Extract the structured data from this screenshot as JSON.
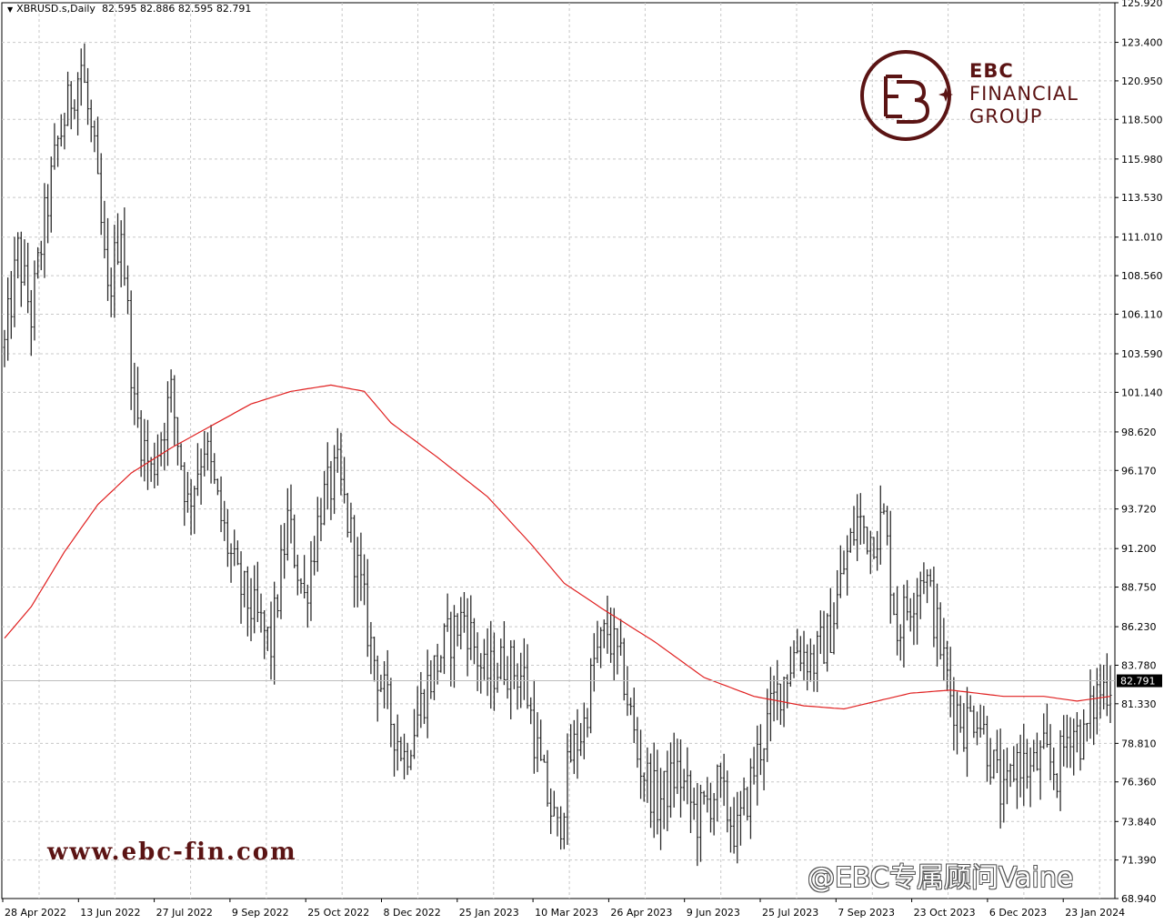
{
  "header": {
    "symbol": "XBRUSD.s,Daily",
    "ohlc": "82.595 82.886 82.595 82.791"
  },
  "watermark": {
    "logo_line1": "EBC",
    "logo_line2": "FINANCIAL",
    "logo_line3": "GROUP",
    "website": "www.ebc-fin.com",
    "social": "@EBC专属顾问Vaine"
  },
  "colors": {
    "bars": "#2b2b2b",
    "moving_average": "#e02020",
    "grid": "#c8c8c8",
    "brand": "#5b1414"
  },
  "chart_data": {
    "type": "ohlc",
    "symbol": "XBRUSD.s",
    "timeframe": "Daily",
    "ylim": [
      68.94,
      125.92
    ],
    "y_ticks": [
      "125.920",
      "123.400",
      "120.950",
      "118.500",
      "115.980",
      "113.530",
      "111.010",
      "108.560",
      "106.110",
      "103.590",
      "101.140",
      "98.620",
      "96.170",
      "93.720",
      "91.200",
      "88.750",
      "86.230",
      "83.780",
      "81.330",
      "78.810",
      "76.360",
      "73.840",
      "71.390",
      "68.940"
    ],
    "x_ticks": [
      "28 Apr 2022",
      "13 Jun 2022",
      "27 Jul 2022",
      "9 Sep 2022",
      "25 Oct 2022",
      "8 Dec 2022",
      "25 Jan 2023",
      "10 Mar 2023",
      "26 Apr 2023",
      "9 Jun 2023",
      "25 Jul 2023",
      "7 Sep 2023",
      "23 Oct 2023",
      "6 Dec 2023",
      "23 Jan 2024"
    ],
    "current_price": "82.791",
    "grid": true,
    "price_path": [
      {
        "t": 0,
        "v": 104
      },
      {
        "t": 4,
        "v": 110
      },
      {
        "t": 8,
        "v": 106
      },
      {
        "t": 12,
        "v": 112
      },
      {
        "t": 16,
        "v": 117
      },
      {
        "t": 20,
        "v": 120
      },
      {
        "t": 23,
        "v": 122
      },
      {
        "t": 27,
        "v": 116
      },
      {
        "t": 31,
        "v": 107
      },
      {
        "t": 35,
        "v": 112
      },
      {
        "t": 39,
        "v": 100
      },
      {
        "t": 44,
        "v": 96
      },
      {
        "t": 50,
        "v": 101
      },
      {
        "t": 55,
        "v": 94
      },
      {
        "t": 60,
        "v": 98
      },
      {
        "t": 65,
        "v": 93
      },
      {
        "t": 70,
        "v": 89
      },
      {
        "t": 75,
        "v": 87
      },
      {
        "t": 80,
        "v": 85
      },
      {
        "t": 85,
        "v": 93
      },
      {
        "t": 90,
        "v": 88
      },
      {
        "t": 95,
        "v": 94
      },
      {
        "t": 100,
        "v": 96
      },
      {
        "t": 105,
        "v": 91
      },
      {
        "t": 110,
        "v": 85
      },
      {
        "t": 115,
        "v": 81
      },
      {
        "t": 120,
        "v": 78
      },
      {
        "t": 126,
        "v": 82
      },
      {
        "t": 132,
        "v": 85
      },
      {
        "t": 138,
        "v": 87
      },
      {
        "t": 144,
        "v": 83
      },
      {
        "t": 150,
        "v": 84
      },
      {
        "t": 156,
        "v": 83
      },
      {
        "t": 161,
        "v": 77
      },
      {
        "t": 166,
        "v": 73
      },
      {
        "t": 170,
        "v": 78
      },
      {
        "t": 174,
        "v": 80
      },
      {
        "t": 177,
        "v": 84
      },
      {
        "t": 181,
        "v": 86
      },
      {
        "t": 186,
        "v": 83
      },
      {
        "t": 190,
        "v": 78
      },
      {
        "t": 196,
        "v": 75
      },
      {
        "t": 202,
        "v": 77
      },
      {
        "t": 208,
        "v": 74
      },
      {
        "t": 214,
        "v": 76
      },
      {
        "t": 220,
        "v": 73
      },
      {
        "t": 226,
        "v": 78
      },
      {
        "t": 232,
        "v": 82
      },
      {
        "t": 238,
        "v": 85
      },
      {
        "t": 243,
        "v": 84
      },
      {
        "t": 248,
        "v": 86
      },
      {
        "t": 252,
        "v": 90
      },
      {
        "t": 256,
        "v": 93
      },
      {
        "t": 260,
        "v": 92
      },
      {
        "t": 264,
        "v": 93
      },
      {
        "t": 268,
        "v": 86
      },
      {
        "t": 272,
        "v": 88
      },
      {
        "t": 276,
        "v": 90
      },
      {
        "t": 280,
        "v": 86
      },
      {
        "t": 284,
        "v": 82
      },
      {
        "t": 288,
        "v": 80
      },
      {
        "t": 292,
        "v": 81
      },
      {
        "t": 296,
        "v": 78
      },
      {
        "t": 300,
        "v": 75
      },
      {
        "t": 304,
        "v": 78
      },
      {
        "t": 308,
        "v": 77
      },
      {
        "t": 312,
        "v": 78
      },
      {
        "t": 316,
        "v": 77
      },
      {
        "t": 320,
        "v": 80
      },
      {
        "t": 324,
        "v": 79
      },
      {
        "t": 328,
        "v": 82
      },
      {
        "t": 332,
        "v": 82.8
      }
    ],
    "moving_average": [
      {
        "t": 0,
        "v": 85.5
      },
      {
        "t": 8,
        "v": 87.5
      },
      {
        "t": 18,
        "v": 91
      },
      {
        "t": 28,
        "v": 94
      },
      {
        "t": 38,
        "v": 96
      },
      {
        "t": 50,
        "v": 97.6
      },
      {
        "t": 62,
        "v": 99
      },
      {
        "t": 74,
        "v": 100.4
      },
      {
        "t": 86,
        "v": 101.2
      },
      {
        "t": 98,
        "v": 101.6
      },
      {
        "t": 108,
        "v": 101.2
      },
      {
        "t": 116,
        "v": 99.2
      },
      {
        "t": 130,
        "v": 97
      },
      {
        "t": 145,
        "v": 94.5
      },
      {
        "t": 158,
        "v": 91.5
      },
      {
        "t": 168,
        "v": 89
      },
      {
        "t": 180,
        "v": 87.3
      },
      {
        "t": 195,
        "v": 85.3
      },
      {
        "t": 210,
        "v": 83
      },
      {
        "t": 225,
        "v": 81.8
      },
      {
        "t": 240,
        "v": 81.2
      },
      {
        "t": 252,
        "v": 81
      },
      {
        "t": 262,
        "v": 81.5
      },
      {
        "t": 272,
        "v": 82
      },
      {
        "t": 284,
        "v": 82.2
      },
      {
        "t": 300,
        "v": 81.8
      },
      {
        "t": 312,
        "v": 81.8
      },
      {
        "t": 322,
        "v": 81.5
      },
      {
        "t": 332,
        "v": 81.8
      }
    ]
  }
}
